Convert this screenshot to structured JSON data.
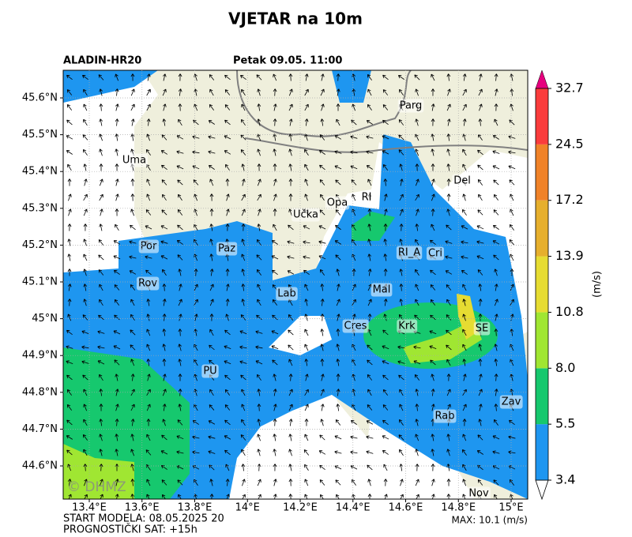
{
  "title": "VJETAR na 10m",
  "model": "ALADIN-HR20",
  "valid_time": "Petak 09.05. 11:00",
  "x_ticks": [
    "13.4°E",
    "13.6°E",
    "13.8°E",
    "14°E",
    "14.2°E",
    "14.4°E",
    "14.6°E",
    "14.8°E",
    "15°E"
  ],
  "y_ticks": [
    "45.6°N",
    "45.5°N",
    "45.4°N",
    "45.3°N",
    "45.2°N",
    "45.1°N",
    "45°N",
    "44.9°N",
    "44.8°N",
    "44.7°N",
    "44.6°N"
  ],
  "places": [
    "Parg",
    "Uma",
    "Del",
    "RI",
    "Opa",
    "Učka",
    "Por",
    "Paz",
    "RI_A",
    "Cri",
    "Rov",
    "Lab",
    "Mal",
    "Cres",
    "Krk",
    "SE",
    "PU",
    "Zav",
    "Rab",
    "Nov"
  ],
  "colorbar": {
    "unit": "(m/s)",
    "levels": [
      "3.4",
      "5.5",
      "8.0",
      "10.8",
      "13.9",
      "17.2",
      "24.5",
      "32.7"
    ]
  },
  "watermark": "© DHMZ",
  "footer": {
    "start": "START MODELA: 08.05.2025 20",
    "lead": "PROGNOSTIČKI SAT: +15h",
    "max": "MAX: 10.1 (m/s)"
  }
}
